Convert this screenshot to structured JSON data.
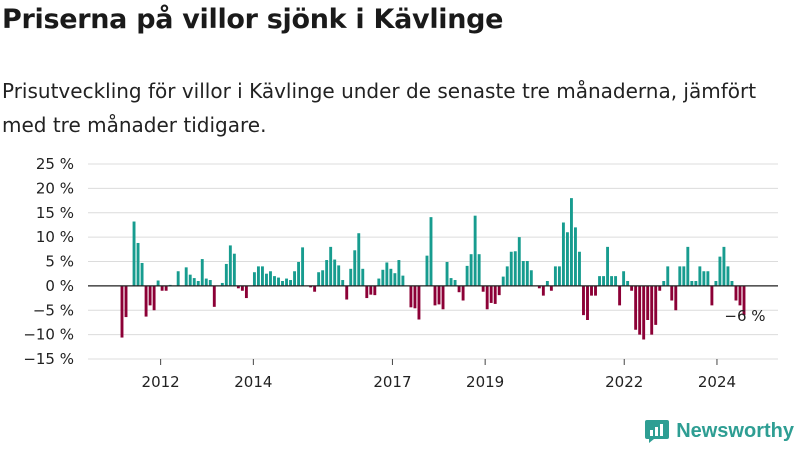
{
  "header": {
    "title": "Priserna på villor sjönk i Kävlinge",
    "subtitle": "Prisutveckling för villor i Kävlinge under de senaste tre månaderna, jämfört med tre månader tidigare."
  },
  "brand": {
    "name": "Newsworthy",
    "icon": "newsworthy-logo-icon",
    "color": "#2e9e93"
  },
  "chart_data": {
    "type": "bar",
    "xlabel": "",
    "ylabel": "",
    "ylim": [
      -15,
      25
    ],
    "y_ticks": [
      "25 %",
      "20 %",
      "15 %",
      "10 %",
      "5 %",
      "0 %",
      "−5 %",
      "−10 %",
      "−15 %"
    ],
    "x_ticks": [
      "2012",
      "2014",
      "2017",
      "2019",
      "2022",
      "2024"
    ],
    "grid": true,
    "colors": {
      "positive": "#179c8f",
      "negative": "#8c0036"
    },
    "last_value_label": "−6 %",
    "x_start": "2011-09",
    "x_end": "2025-02",
    "values": [
      -10.6,
      -6.4,
      0,
      13.2,
      8.8,
      4.7,
      -6.3,
      -4,
      -5,
      1.1,
      -1,
      -1,
      0.2,
      0,
      3,
      0,
      3.8,
      2.3,
      1.6,
      1,
      5.5,
      1.5,
      1.2,
      -4.3,
      0,
      0.6,
      4.5,
      8.3,
      6.6,
      -0.5,
      -1,
      -2.5,
      0,
      2.8,
      4,
      4,
      2.5,
      3,
      2,
      1.7,
      1,
      1.5,
      1.2,
      3,
      4.9,
      7.9,
      0,
      -0.3,
      -1.2,
      2.8,
      3.2,
      5.3,
      8,
      5.4,
      4.2,
      1.2,
      -2.8,
      3.5,
      7.3,
      10.8,
      3.5,
      -2.5,
      -1.8,
      -1.9,
      1.5,
      3.3,
      4.8,
      3.5,
      2.6,
      5.3,
      2.1,
      0,
      -4.4,
      -4.6,
      -6.9,
      0,
      6.2,
      14.1,
      -4,
      -3.8,
      -4.8,
      4.9,
      1.6,
      1.2,
      -1.3,
      -3,
      4.1,
      6.5,
      14.4,
      6.5,
      -1.2,
      -4.8,
      -3.5,
      -3.7,
      -1.9,
      1.9,
      4,
      7,
      7.1,
      10,
      5.1,
      5.1,
      3.2,
      0,
      -0.5,
      -2,
      1,
      -1,
      4,
      4,
      13,
      11,
      18,
      12,
      7,
      -6,
      -7,
      -2,
      -2,
      2,
      2,
      8,
      2,
      2,
      -4,
      3,
      1,
      -1,
      -9,
      -10,
      -11,
      -7,
      -10,
      -8,
      -1,
      1,
      4,
      -3,
      -5,
      4,
      4,
      8,
      1,
      1,
      4,
      3,
      3,
      -4,
      1,
      6,
      8,
      4,
      1,
      -3,
      -4,
      -6
    ]
  }
}
